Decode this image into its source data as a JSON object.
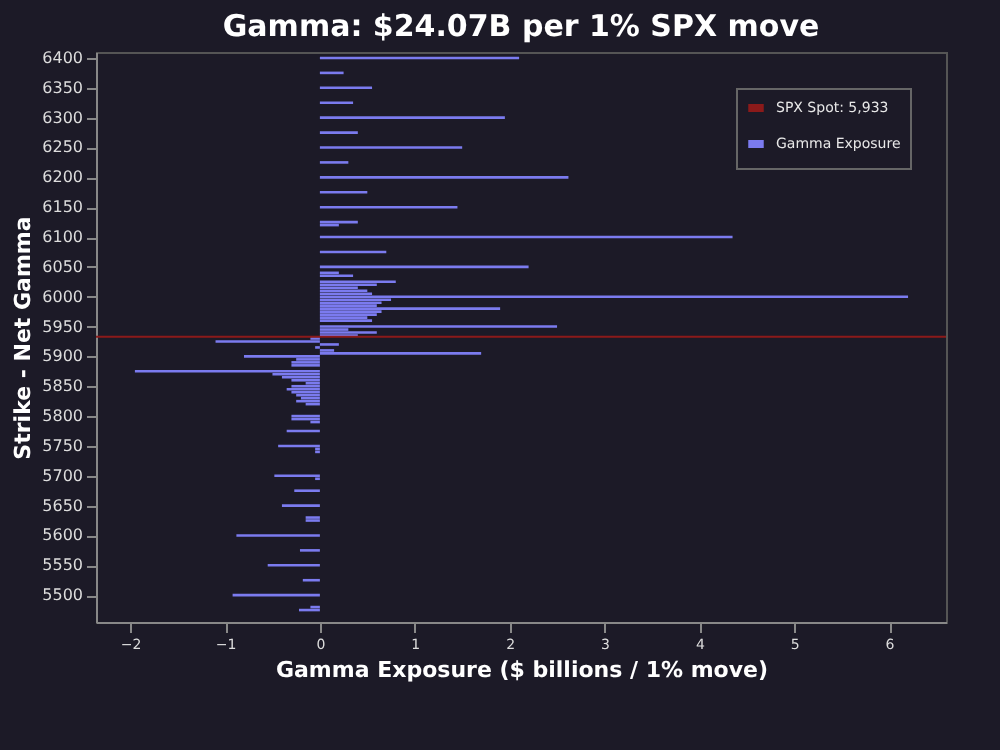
{
  "chart_data": {
    "type": "bar",
    "orientation": "horizontal",
    "title": "Gamma: $24.07B per 1% SPX move",
    "xlabel": "Gamma Exposure ($ billions / 1% move)",
    "ylabel": "Strike - Net Gamma",
    "x": [
      6400,
      6375,
      6350,
      6325,
      6300,
      6275,
      6250,
      6225,
      6200,
      6175,
      6150,
      6125,
      6120,
      6100,
      6075,
      6050,
      6040,
      6035,
      6025,
      6020,
      6015,
      6010,
      6005,
      6000,
      5995,
      5990,
      5985,
      5980,
      5975,
      5970,
      5965,
      5960,
      5950,
      5945,
      5940,
      5935,
      5930,
      5925,
      5920,
      5915,
      5910,
      5905,
      5900,
      5895,
      5890,
      5885,
      5875,
      5870,
      5865,
      5860,
      5855,
      5850,
      5845,
      5840,
      5835,
      5830,
      5825,
      5820,
      5800,
      5795,
      5790,
      5775,
      5750,
      5745,
      5740,
      5700,
      5695,
      5675,
      5650,
      5630,
      5625,
      5600,
      5575,
      5550,
      5525,
      5500,
      5480,
      5475
    ],
    "series": [
      {
        "name": "Gamma Exposure",
        "color": "#7b7bef",
        "values": [
          2.1,
          0.25,
          0.55,
          0.35,
          1.95,
          0.4,
          1.5,
          0.3,
          2.62,
          0.5,
          1.45,
          0.4,
          0.2,
          4.35,
          0.7,
          2.2,
          0.2,
          0.35,
          0.8,
          0.6,
          0.4,
          0.5,
          0.55,
          6.2,
          0.75,
          0.65,
          0.6,
          1.9,
          0.65,
          0.6,
          0.5,
          0.55,
          2.5,
          0.3,
          0.6,
          0.4,
          -0.1,
          -1.1,
          0.2,
          -0.05,
          0.15,
          1.7,
          -0.8,
          -0.25,
          -0.3,
          -0.3,
          -1.95,
          -0.5,
          -0.4,
          -0.3,
          -0.15,
          -0.3,
          -0.35,
          -0.3,
          -0.25,
          -0.2,
          -0.25,
          -0.15,
          -0.3,
          -0.3,
          -0.1,
          -0.35,
          -0.44,
          -0.05,
          -0.05,
          -0.48,
          -0.05,
          -0.27,
          -0.4,
          -0.15,
          -0.15,
          -0.88,
          -0.21,
          -0.55,
          -0.18,
          -0.92,
          -0.1,
          -0.22
        ]
      }
    ],
    "xlim": [
      -2.36,
      6.6
    ],
    "xticks": [
      -2,
      -1,
      0,
      1,
      2,
      3,
      4,
      5,
      6
    ],
    "ylim": [
      5455,
      6410
    ],
    "yticks": [
      5500,
      5550,
      5600,
      5650,
      5700,
      5750,
      5800,
      5850,
      5900,
      5950,
      6000,
      6050,
      6100,
      6150,
      6200,
      6250,
      6300,
      6350,
      6400
    ],
    "ref_lines": [
      {
        "axis": "y",
        "value": 5933,
        "label": "SPX Spot: 5,933",
        "color": "#8b1a1a"
      }
    ],
    "legend": "top right",
    "grid": false
  }
}
